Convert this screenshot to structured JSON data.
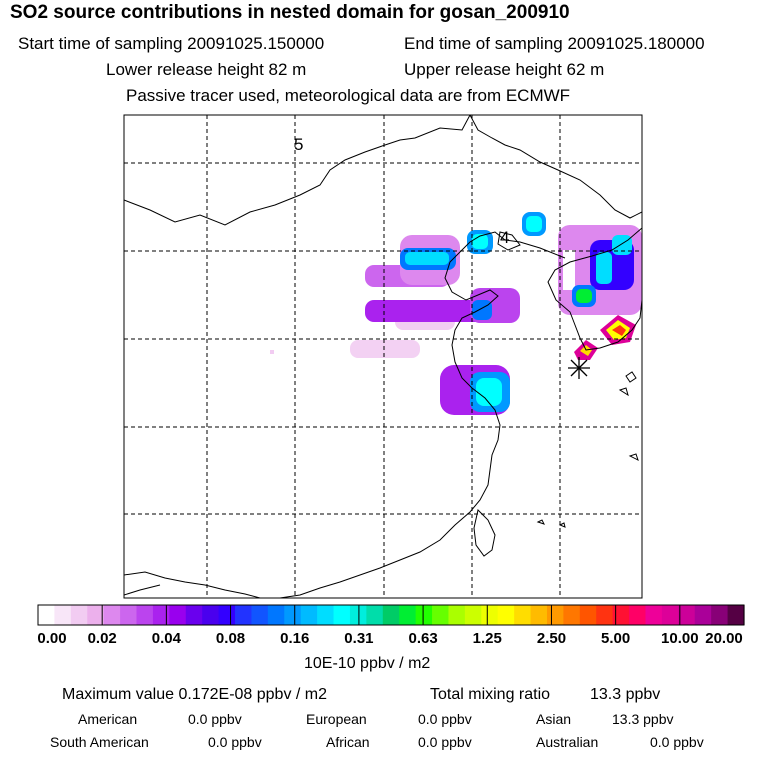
{
  "header": {
    "title": "SO2 source contributions in nested domain for gosan_200910",
    "start": "Start time of sampling 20091025.150000",
    "end": "End time of sampling 20091025.180000",
    "lower": "Lower release height   82 m",
    "upper": "Upper release height   62 m",
    "note": "Passive tracer used, meteorological data are from ECMWF"
  },
  "map": {
    "grid_labels": [
      "5",
      "4"
    ],
    "receptor_marker": "asterisk"
  },
  "chart_data": {
    "type": "heatmap",
    "title": "SO2 source contributions in nested domain for gosan_200910",
    "colorbar": {
      "unit": "10E-10 ppbv / m2",
      "ticks": [
        "0.00",
        "0.02",
        "0.04",
        "0.08",
        "0.16",
        "0.31",
        "0.63",
        "1.25",
        "2.50",
        "5.00",
        "10.00",
        "20.00"
      ],
      "colors": [
        "#ffffff",
        "#f8e6f8",
        "#f2ccf2",
        "#ecb0ec",
        "#dd88ee",
        "#cc66ee",
        "#bb44ee",
        "#aa22ee",
        "#9900ee",
        "#6a00ee",
        "#4a00ee",
        "#3300ff",
        "#2233ff",
        "#1155ff",
        "#0077ff",
        "#0099ff",
        "#00bbff",
        "#00ddff",
        "#00ffff",
        "#00eedd",
        "#00ddaa",
        "#00cc66",
        "#00ee33",
        "#22ff00",
        "#66ff00",
        "#aaff00",
        "#ccff00",
        "#eeff00",
        "#ffff00",
        "#ffdd00",
        "#ffbb00",
        "#ff9900",
        "#ff7700",
        "#ff5500",
        "#ff3311",
        "#ff1133",
        "#ff0066",
        "#ee0099",
        "#dd0099",
        "#cc0099",
        "#aa0099",
        "#880077",
        "#550044"
      ]
    }
  },
  "footer": {
    "max_label": "Maximum value  0.172E-08 ppbv / m2",
    "total_label": "Total mixing ratio",
    "total_value": "13.3 ppbv",
    "regions": [
      {
        "name": "American",
        "value": "0.0 ppbv"
      },
      {
        "name": "European",
        "value": "0.0 ppbv"
      },
      {
        "name": "Asian",
        "value": "13.3 ppbv"
      },
      {
        "name": "South American",
        "value": "0.0 ppbv"
      },
      {
        "name": "African",
        "value": "0.0 ppbv"
      },
      {
        "name": "Australian",
        "value": "0.0 ppbv"
      }
    ]
  }
}
